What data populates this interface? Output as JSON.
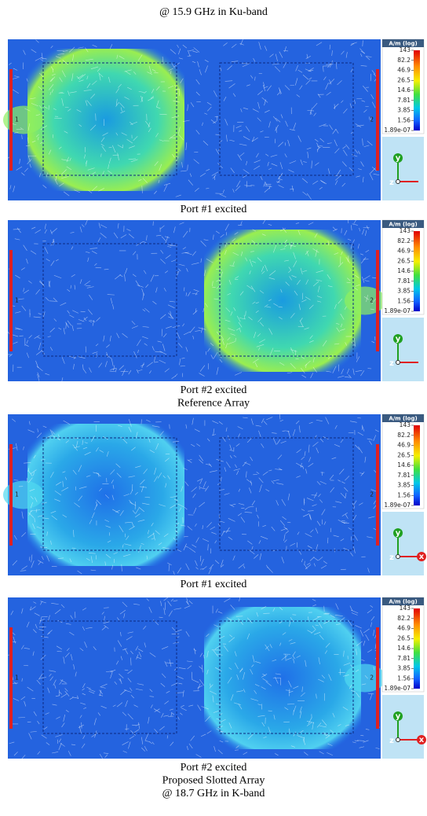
{
  "header": {
    "title": "@ 15.9 GHz in Ku-band"
  },
  "panels": [
    {
      "colorbar": {
        "unit": "A/m (log)",
        "ticks": [
          "143",
          "82.2",
          "46.9",
          "26.5",
          "14.6",
          "7.81",
          "3.85",
          "1.56",
          "1.89e-07"
        ]
      },
      "ports": [
        "1",
        "2"
      ],
      "axes": [
        "y",
        "z"
      ],
      "captions": [
        "Port #1 excited"
      ]
    },
    {
      "colorbar": {
        "unit": "A/m (log)",
        "ticks": [
          "143",
          "82.2",
          "46.9",
          "26.5",
          "14.6",
          "7.81",
          "3.85",
          "1.56",
          "1.89e-07"
        ]
      },
      "ports": [
        "1",
        "2"
      ],
      "axes": [
        "y",
        "z"
      ],
      "captions": [
        "Port #2 excited",
        "Reference Array"
      ]
    },
    {
      "colorbar": {
        "unit": "A/m (log)",
        "ticks": [
          "143",
          "82.2",
          "46.9",
          "26.5",
          "14.6",
          "7.81",
          "3.85",
          "1.56",
          "1.89e-07"
        ]
      },
      "ports": [
        "1",
        "2"
      ],
      "axes": [
        "y",
        "z",
        "x"
      ],
      "captions": [
        "Port #1 excited"
      ]
    },
    {
      "colorbar": {
        "unit": "A/m (log)",
        "ticks": [
          "143",
          "82.2",
          "46.9",
          "26.5",
          "14.6",
          "7.81",
          "3.85",
          "1.56",
          "1.89e-07"
        ]
      },
      "ports": [
        "1",
        "2"
      ],
      "axes": [
        "y",
        "z",
        "x"
      ],
      "captions": [
        "Port #2 excited",
        "Proposed Slotted Array",
        "@ 18.7 GHz in K-band"
      ]
    }
  ]
}
